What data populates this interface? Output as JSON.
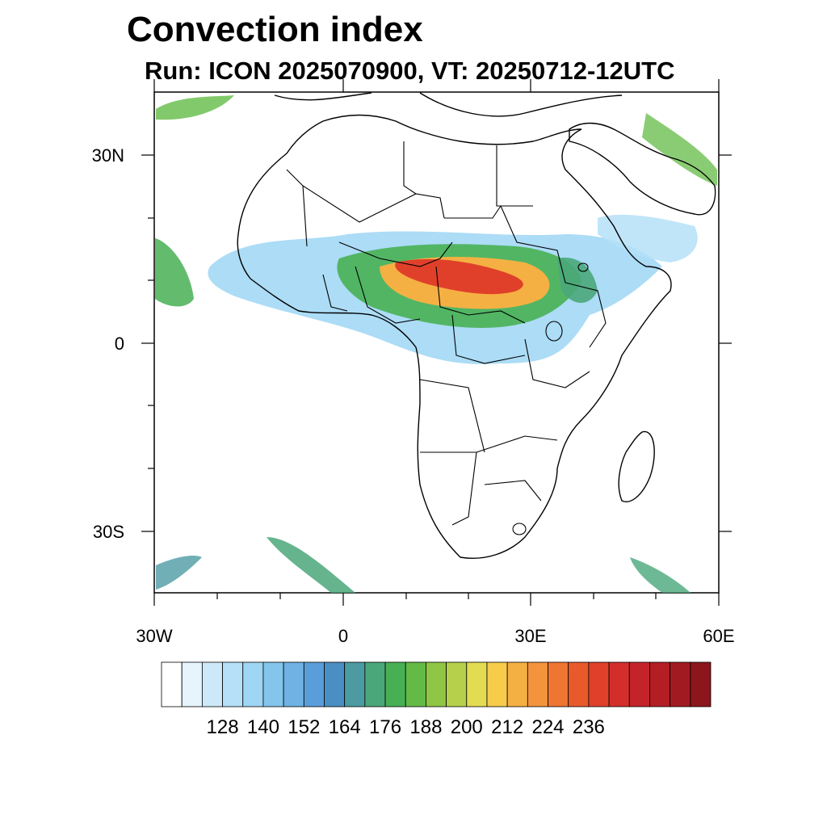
{
  "title": "Convection index",
  "subtitle": "Run: ICON 2025070900,  VT: 20250712-12UTC",
  "lat_labels": [
    "30N",
    "0",
    "30S"
  ],
  "lon_labels": [
    "30W",
    "0",
    "30E",
    "60E"
  ],
  "colorbar": {
    "labels": [
      "128",
      "140",
      "152",
      "164",
      "176",
      "188",
      "200",
      "212",
      "224",
      "236"
    ],
    "colors": [
      "#ffffff",
      "#e6f4fc",
      "#cde9f9",
      "#b5e0f7",
      "#9ed6f4",
      "#84c5ec",
      "#6fb2e3",
      "#5a9ed9",
      "#4a8fc4",
      "#4c9ba2",
      "#4aa77a",
      "#48b054",
      "#63bb46",
      "#8fc645",
      "#b6d04c",
      "#e2dc52",
      "#f6cc4a",
      "#f5b043",
      "#f3943d",
      "#ef7532",
      "#e95a2b",
      "#e0402a",
      "#d42e2b",
      "#c42329",
      "#b31e25",
      "#a21a21",
      "#8c161b"
    ]
  },
  "chart_data": {
    "type": "heatmap",
    "title": "Convection index",
    "subtitle": "Run: ICON 2025070900,  VT: 20250712-12UTC",
    "x_range": [
      -30,
      60
    ],
    "y_range": [
      -40,
      40
    ],
    "x_ticks": [
      "30W",
      "0",
      "30E",
      "60E"
    ],
    "y_ticks": [
      "30N",
      "0",
      "30S"
    ],
    "colorbar_ticks": [
      128,
      140,
      152,
      164,
      176,
      188,
      200,
      212,
      224,
      236
    ]
  }
}
